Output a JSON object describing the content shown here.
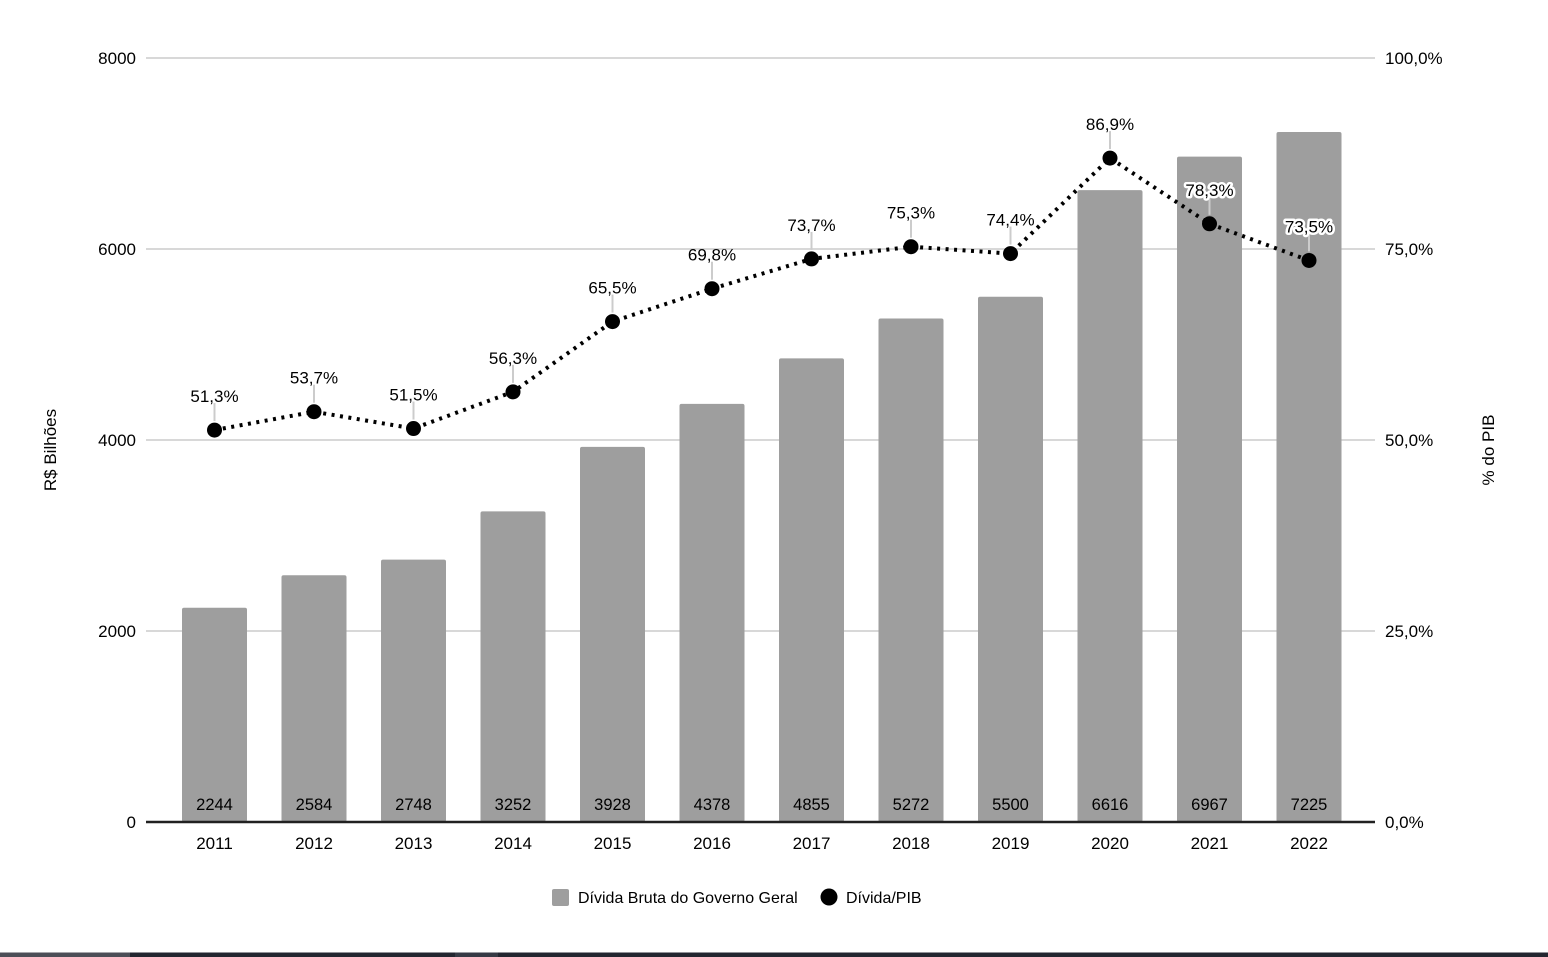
{
  "chart_data": {
    "type": "combo",
    "categories": [
      "2011",
      "2012",
      "2013",
      "2014",
      "2015",
      "2016",
      "2017",
      "2018",
      "2019",
      "2020",
      "2021",
      "2022"
    ],
    "series": [
      {
        "name": "Dívida Bruta do Governo Geral",
        "type": "bar",
        "axis": "left",
        "values": [
          2244,
          2584,
          2748,
          3252,
          3928,
          4378,
          4855,
          5272,
          5500,
          6616,
          6967,
          7225
        ],
        "value_labels": [
          "2244",
          "2584",
          "2748",
          "3252",
          "3928",
          "4378",
          "4855",
          "5272",
          "5500",
          "6616",
          "6967",
          "7225"
        ]
      },
      {
        "name": "Dívida/PIB",
        "type": "line",
        "style": "dotted",
        "axis": "right",
        "values": [
          51.3,
          53.7,
          51.5,
          56.3,
          65.5,
          69.8,
          73.7,
          75.3,
          74.4,
          86.9,
          78.3,
          73.5
        ],
        "point_labels": [
          "51,3%",
          "53,7%",
          "51,5%",
          "56,3%",
          "65,5%",
          "69,8%",
          "73,7%",
          "75,3%",
          "74,4%",
          "86,9%",
          "78,3%",
          "73,5%"
        ],
        "label_halo": [
          false,
          false,
          false,
          false,
          false,
          false,
          false,
          false,
          false,
          false,
          true,
          true
        ]
      }
    ],
    "left_axis": {
      "title": "R$ Bilhões",
      "tick_values": [
        0,
        2000,
        4000,
        6000,
        8000
      ],
      "tick_labels": [
        "0",
        "2000",
        "4000",
        "6000",
        "8000"
      ],
      "min": 0,
      "max": 8000
    },
    "right_axis": {
      "title": "% do PIB",
      "tick_values": [
        0,
        25,
        50,
        75,
        100
      ],
      "tick_labels": [
        "0,0%",
        "25,0%",
        "50,0%",
        "75,0%",
        "100,0%"
      ],
      "min": 0,
      "max": 100
    },
    "grid": true,
    "legend_position": "bottom"
  },
  "legend": {
    "items": [
      {
        "label": "Dívida Bruta do Governo Geral",
        "marker": "square"
      },
      {
        "label": "Dívida/PIB",
        "marker": "circle"
      }
    ]
  },
  "colors": {
    "bar": "#9e9e9e",
    "line": "#000000",
    "marker": "#000000",
    "gridline": "#cccccc",
    "axis_line": "#212121",
    "text": "#000000",
    "leader_line": "#cccccc",
    "label_halo": "#ffffff",
    "background": "#ffffff",
    "strip_dark": "#232630",
    "strip_left": "#4c4e57",
    "strip_mid": "#363a45"
  }
}
